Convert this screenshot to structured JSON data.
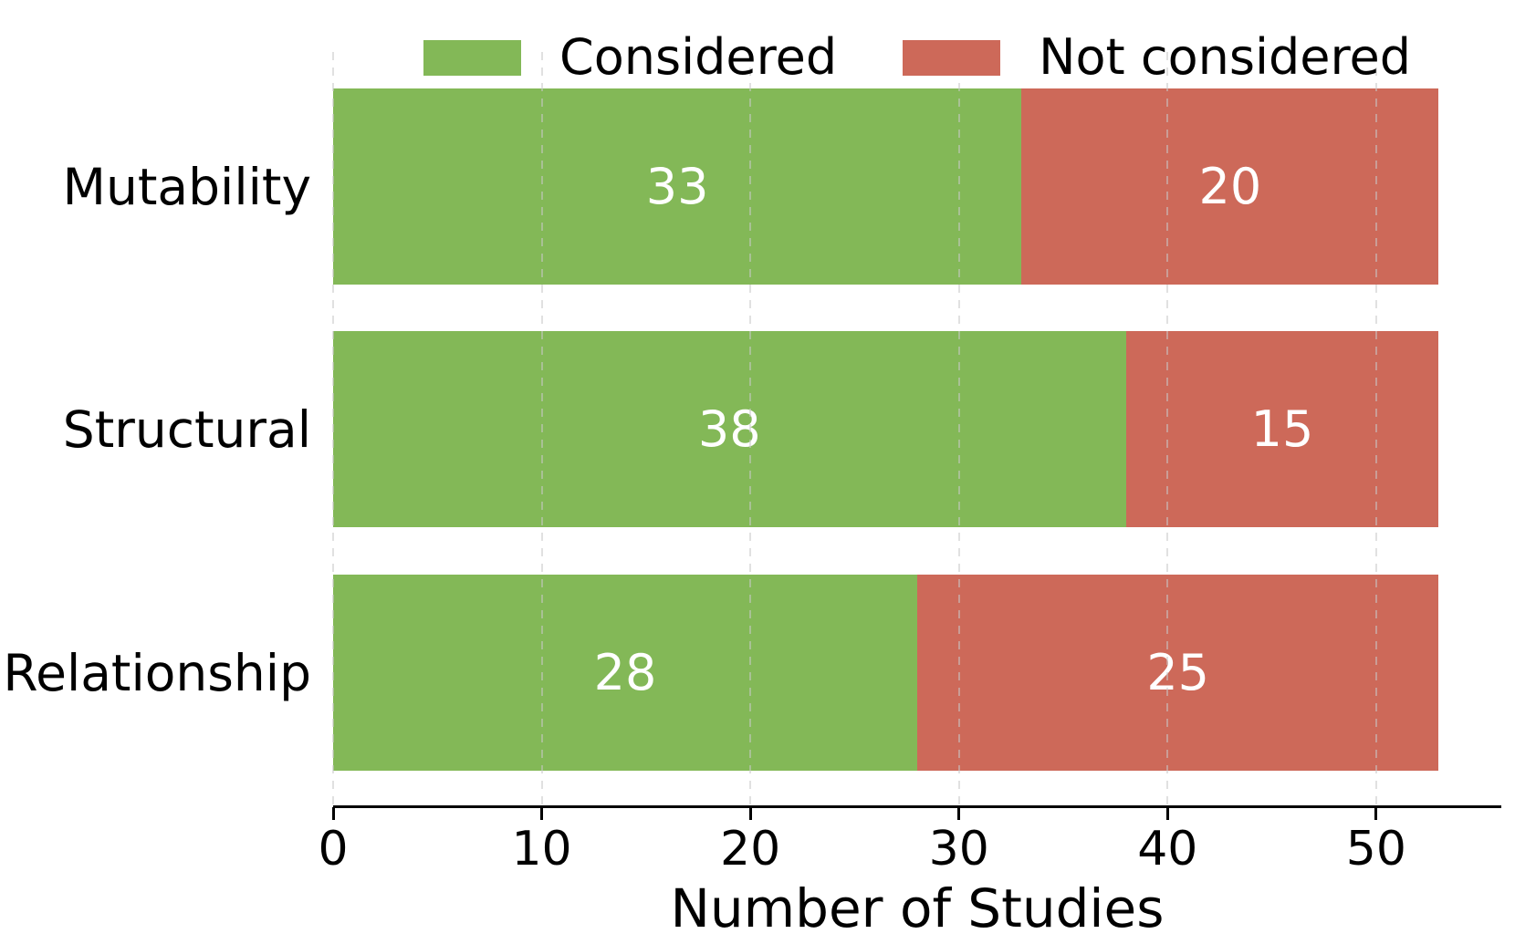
{
  "chart_data": {
    "type": "bar",
    "orientation": "horizontal",
    "stacked": true,
    "title": "",
    "xlabel": "Number of Studies",
    "ylabel": "",
    "categories": [
      "Mutability",
      "Structural",
      "Relationship"
    ],
    "series": [
      {
        "name": "Considered",
        "color": "#83b857",
        "values": [
          33,
          38,
          28
        ]
      },
      {
        "name": "Not considered",
        "color": "#cd6959",
        "values": [
          20,
          15,
          25
        ]
      }
    ],
    "totals": [
      53,
      53,
      53
    ],
    "xticks": [
      0,
      10,
      20,
      30,
      40,
      50
    ],
    "xlim": [
      0,
      56
    ],
    "grid": "vertical-dashed",
    "grid_color": "#dcdcdc",
    "legend_position": "top-center",
    "bar_label_color": "#ffffff",
    "axis_color": "#000000"
  }
}
